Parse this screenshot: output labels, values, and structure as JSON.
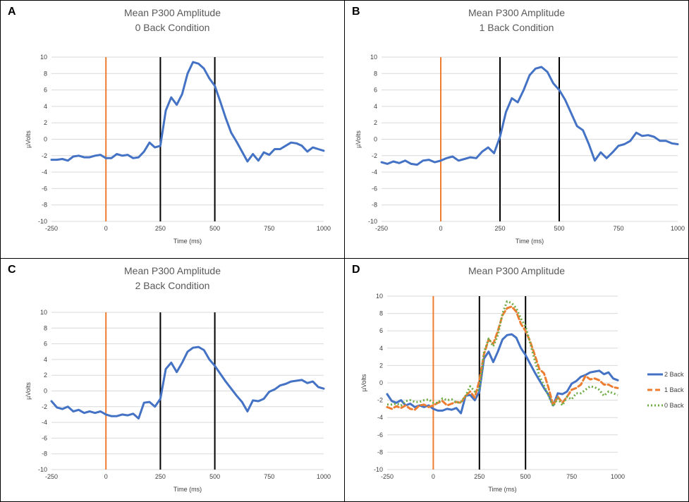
{
  "colors": {
    "series_2back": "#4472C4",
    "series_1back": "#ED7D31",
    "series_0back": "#70AD47",
    "stimulus_line": "#ED7D31",
    "window_line": "#000000",
    "grid": "#D9D9D9"
  },
  "chart_data": [
    {
      "id": "A",
      "type": "line",
      "panel_label": "A",
      "title": "Mean P300 Amplitude",
      "subtitle": "0 Back Condition",
      "xlabel": "Time (ms)",
      "ylabel": "µVolts",
      "xlim": [
        -250,
        1000
      ],
      "ylim": [
        -10,
        10
      ],
      "xticks": [
        -250,
        0,
        250,
        500,
        750,
        1000
      ],
      "yticks": [
        -10,
        -8,
        -6,
        -4,
        -2,
        0,
        2,
        4,
        6,
        8,
        10
      ],
      "grid": true,
      "vlines": [
        {
          "x": 0,
          "color": "#ED7D31"
        },
        {
          "x": 250,
          "color": "#000000"
        },
        {
          "x": 500,
          "color": "#000000"
        }
      ],
      "series": [
        {
          "color": "#4472C4",
          "style": "solid",
          "x": [
            -250,
            -225,
            -200,
            -175,
            -150,
            -125,
            -100,
            -75,
            -50,
            -25,
            0,
            25,
            50,
            75,
            100,
            125,
            150,
            175,
            200,
            225,
            250,
            275,
            300,
            325,
            350,
            375,
            400,
            425,
            450,
            475,
            500,
            525,
            550,
            575,
            600,
            625,
            650,
            675,
            700,
            725,
            750,
            775,
            800,
            825,
            850,
            875,
            900,
            925,
            950,
            975,
            1000
          ],
          "y": [
            -2.5,
            -2.5,
            -2.4,
            -2.6,
            -2.1,
            -2.0,
            -2.2,
            -2.2,
            -2.0,
            -1.9,
            -2.3,
            -2.3,
            -1.8,
            -2.0,
            -1.9,
            -2.3,
            -2.2,
            -1.5,
            -0.4,
            -1.0,
            -0.8,
            3.5,
            5.1,
            4.2,
            5.5,
            8.0,
            9.4,
            9.2,
            8.6,
            7.4,
            6.5,
            4.6,
            2.6,
            0.8,
            -0.3,
            -1.5,
            -2.7,
            -1.8,
            -2.6,
            -1.6,
            -1.9,
            -1.2,
            -1.2,
            -0.8,
            -0.4,
            -0.5,
            -0.8,
            -1.5,
            -1.0,
            -1.2,
            -1.4
          ]
        }
      ]
    },
    {
      "id": "B",
      "type": "line",
      "panel_label": "B",
      "title": "Mean P300 Amplitude",
      "subtitle": "1 Back Condition",
      "xlabel": "Time (ms)",
      "ylabel": "µVolts",
      "xlim": [
        -250,
        1000
      ],
      "ylim": [
        -10,
        10
      ],
      "xticks": [
        -250,
        0,
        250,
        500,
        750,
        1000
      ],
      "yticks": [
        -10,
        -8,
        -6,
        -4,
        -2,
        0,
        2,
        4,
        6,
        8,
        10
      ],
      "grid": true,
      "vlines": [
        {
          "x": 0,
          "color": "#ED7D31"
        },
        {
          "x": 250,
          "color": "#000000"
        },
        {
          "x": 500,
          "color": "#000000"
        }
      ],
      "series": [
        {
          "color": "#4472C4",
          "style": "solid",
          "x": [
            -250,
            -225,
            -200,
            -175,
            -150,
            -125,
            -100,
            -75,
            -50,
            -25,
            0,
            25,
            50,
            75,
            100,
            125,
            150,
            175,
            200,
            225,
            250,
            275,
            300,
            325,
            350,
            375,
            400,
            425,
            450,
            475,
            500,
            525,
            550,
            575,
            600,
            625,
            650,
            675,
            700,
            725,
            750,
            775,
            800,
            825,
            850,
            875,
            900,
            925,
            950,
            975,
            1000
          ],
          "y": [
            -2.8,
            -3.0,
            -2.7,
            -2.9,
            -2.6,
            -3.0,
            -3.1,
            -2.6,
            -2.5,
            -2.8,
            -2.6,
            -2.3,
            -2.1,
            -2.6,
            -2.4,
            -2.2,
            -2.3,
            -1.5,
            -1.0,
            -1.7,
            0.3,
            3.3,
            5.0,
            4.5,
            6.0,
            7.8,
            8.6,
            8.8,
            8.2,
            6.8,
            6.0,
            4.8,
            3.2,
            1.6,
            1.1,
            -0.6,
            -2.6,
            -1.6,
            -2.3,
            -1.6,
            -0.8,
            -0.6,
            -0.2,
            0.8,
            0.4,
            0.5,
            0.3,
            -0.2,
            -0.2,
            -0.5,
            -0.6
          ]
        }
      ]
    },
    {
      "id": "C",
      "type": "line",
      "panel_label": "C",
      "title": "Mean P300 Amplitude",
      "subtitle": "2 Back Condition",
      "xlabel": "Time (ms)",
      "ylabel": "µVolts",
      "xlim": [
        -250,
        1000
      ],
      "ylim": [
        -10,
        10
      ],
      "xticks": [
        -250,
        0,
        250,
        500,
        750,
        1000
      ],
      "yticks": [
        -10,
        -8,
        -6,
        -4,
        -2,
        0,
        2,
        4,
        6,
        8,
        10
      ],
      "grid": true,
      "vlines": [
        {
          "x": 0,
          "color": "#ED7D31"
        },
        {
          "x": 250,
          "color": "#000000"
        },
        {
          "x": 500,
          "color": "#000000"
        }
      ],
      "series": [
        {
          "color": "#4472C4",
          "style": "solid",
          "x": [
            -250,
            -225,
            -200,
            -175,
            -150,
            -125,
            -100,
            -75,
            -50,
            -25,
            0,
            25,
            50,
            75,
            100,
            125,
            150,
            175,
            200,
            225,
            250,
            275,
            300,
            325,
            350,
            375,
            400,
            425,
            450,
            475,
            500,
            525,
            550,
            575,
            600,
            625,
            650,
            675,
            700,
            725,
            750,
            775,
            800,
            825,
            850,
            875,
            900,
            925,
            950,
            975,
            1000
          ],
          "y": [
            -1.3,
            -2.1,
            -2.3,
            -2.0,
            -2.6,
            -2.4,
            -2.8,
            -2.6,
            -2.8,
            -2.6,
            -3.0,
            -3.2,
            -3.2,
            -3.0,
            -3.1,
            -2.9,
            -3.5,
            -1.5,
            -1.4,
            -2.0,
            -1.0,
            2.8,
            3.6,
            2.4,
            3.6,
            5.0,
            5.5,
            5.6,
            5.2,
            4.0,
            3.2,
            2.2,
            1.2,
            0.3,
            -0.6,
            -1.4,
            -2.6,
            -1.2,
            -1.3,
            -1.0,
            -0.1,
            0.2,
            0.7,
            0.9,
            1.2,
            1.3,
            1.4,
            1.0,
            1.2,
            0.5,
            0.3
          ]
        }
      ]
    },
    {
      "id": "D",
      "type": "line",
      "panel_label": "D",
      "title": "Mean P300 Amplitude",
      "xlabel": "Time (ms)",
      "ylabel": "µVolts",
      "xlim": [
        -250,
        1000
      ],
      "ylim": [
        -10,
        10
      ],
      "xticks": [
        -250,
        0,
        250,
        500,
        750,
        1000
      ],
      "yticks": [
        -10,
        -8,
        -6,
        -4,
        -2,
        0,
        2,
        4,
        6,
        8,
        10
      ],
      "grid": true,
      "legend": "right",
      "vlines": [
        {
          "x": 0,
          "color": "#ED7D31"
        },
        {
          "x": 250,
          "color": "#000000"
        },
        {
          "x": 500,
          "color": "#000000"
        }
      ],
      "series": [
        {
          "name": "2 Back",
          "color": "#4472C4",
          "style": "solid",
          "x": [
            -250,
            -225,
            -200,
            -175,
            -150,
            -125,
            -100,
            -75,
            -50,
            -25,
            0,
            25,
            50,
            75,
            100,
            125,
            150,
            175,
            200,
            225,
            250,
            275,
            300,
            325,
            350,
            375,
            400,
            425,
            450,
            475,
            500,
            525,
            550,
            575,
            600,
            625,
            650,
            675,
            700,
            725,
            750,
            775,
            800,
            825,
            850,
            875,
            900,
            925,
            950,
            975,
            1000
          ],
          "y": [
            -1.3,
            -2.1,
            -2.3,
            -2.0,
            -2.6,
            -2.4,
            -2.8,
            -2.6,
            -2.8,
            -2.6,
            -3.0,
            -3.2,
            -3.2,
            -3.0,
            -3.1,
            -2.9,
            -3.5,
            -1.5,
            -1.4,
            -2.0,
            -1.0,
            2.8,
            3.6,
            2.4,
            3.6,
            5.0,
            5.5,
            5.6,
            5.2,
            4.0,
            3.2,
            2.2,
            1.2,
            0.3,
            -0.6,
            -1.4,
            -2.6,
            -1.2,
            -1.3,
            -1.0,
            -0.1,
            0.2,
            0.7,
            0.9,
            1.2,
            1.3,
            1.4,
            1.0,
            1.2,
            0.5,
            0.3
          ]
        },
        {
          "name": "1 Back",
          "color": "#ED7D31",
          "style": "dashed",
          "x": [
            -250,
            -225,
            -200,
            -175,
            -150,
            -125,
            -100,
            -75,
            -50,
            -25,
            0,
            25,
            50,
            75,
            100,
            125,
            150,
            175,
            200,
            225,
            250,
            275,
            300,
            325,
            350,
            375,
            400,
            425,
            450,
            475,
            500,
            525,
            550,
            575,
            600,
            625,
            650,
            675,
            700,
            725,
            750,
            775,
            800,
            825,
            850,
            875,
            900,
            925,
            950,
            975,
            1000
          ],
          "y": [
            -2.8,
            -3.0,
            -2.7,
            -2.9,
            -2.6,
            -3.0,
            -3.1,
            -2.6,
            -2.5,
            -2.8,
            -2.6,
            -2.3,
            -2.1,
            -2.6,
            -2.4,
            -2.2,
            -2.3,
            -1.5,
            -1.0,
            -1.7,
            0.3,
            3.3,
            5.0,
            4.5,
            6.0,
            7.8,
            8.6,
            8.8,
            8.2,
            6.8,
            6.0,
            4.8,
            3.2,
            1.6,
            1.1,
            -0.6,
            -2.6,
            -1.6,
            -2.3,
            -1.6,
            -0.8,
            -0.6,
            -0.2,
            0.8,
            0.4,
            0.5,
            0.3,
            -0.2,
            -0.2,
            -0.5,
            -0.6
          ]
        },
        {
          "name": "0 Back",
          "color": "#70AD47",
          "style": "dotted",
          "x": [
            -250,
            -225,
            -200,
            -175,
            -150,
            -125,
            -100,
            -75,
            -50,
            -25,
            0,
            25,
            50,
            75,
            100,
            125,
            150,
            175,
            200,
            225,
            250,
            275,
            300,
            325,
            350,
            375,
            400,
            425,
            450,
            475,
            500,
            525,
            550,
            575,
            600,
            625,
            650,
            675,
            700,
            725,
            750,
            775,
            800,
            825,
            850,
            875,
            900,
            925,
            950,
            975,
            1000
          ],
          "y": [
            -2.5,
            -2.5,
            -2.4,
            -2.6,
            -2.1,
            -2.0,
            -2.2,
            -2.2,
            -2.0,
            -1.9,
            -2.3,
            -2.3,
            -1.8,
            -2.0,
            -1.9,
            -2.3,
            -2.2,
            -1.5,
            -0.4,
            -1.0,
            -0.8,
            3.5,
            5.1,
            4.2,
            5.5,
            8.0,
            9.4,
            9.2,
            8.6,
            7.4,
            6.5,
            4.6,
            2.6,
            0.8,
            -0.3,
            -1.5,
            -2.7,
            -1.8,
            -2.6,
            -1.6,
            -1.9,
            -1.2,
            -1.2,
            -0.8,
            -0.4,
            -0.5,
            -0.8,
            -1.5,
            -1.0,
            -1.2,
            -1.4
          ]
        }
      ]
    }
  ]
}
